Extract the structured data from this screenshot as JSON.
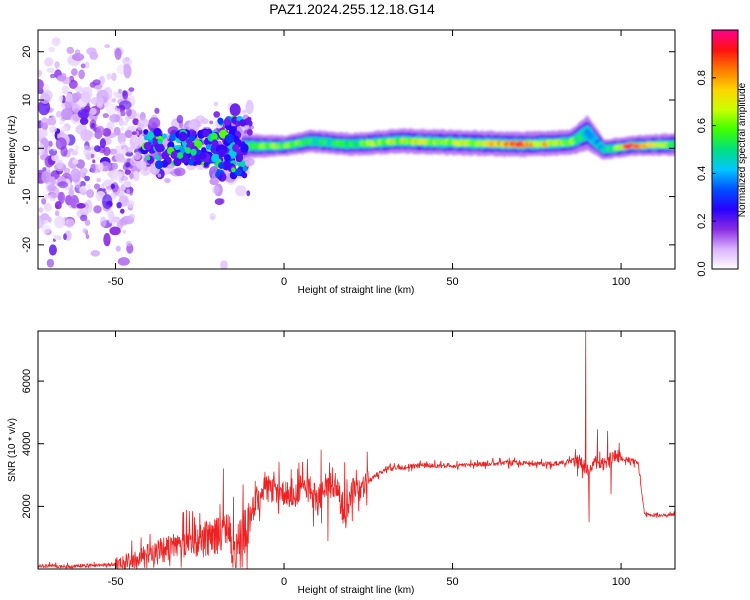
{
  "title": "PAZ1.2024.255.12.18.G14",
  "chart_data": [
    {
      "type": "heatmap",
      "xlabel": "Height of straight line (km)",
      "ylabel": "Frequency (Hz)",
      "xlim": [
        -73,
        116
      ],
      "ylim": [
        -25,
        24.5
      ],
      "xticks": [
        -50,
        0,
        50,
        100
      ],
      "yticks": [
        -20,
        -10,
        0,
        10,
        20
      ],
      "grid": false,
      "colorbar": {
        "label": "Normalized spectral amplitude",
        "range": [
          0,
          1
        ],
        "ticks": [
          "0.0",
          "0.2",
          "0.4",
          "0.6",
          "0.8"
        ],
        "colormap": [
          "#ffffff",
          "#d9b3ff",
          "#8a2be2",
          "#2800ff",
          "#0050ff",
          "#00c8ff",
          "#00e080",
          "#40ff00",
          "#c8ff00",
          "#ffd400",
          "#ff7a00",
          "#ff1010",
          "#ff0090"
        ]
      },
      "band_profile": [
        {
          "x": -12,
          "f": 0.5,
          "width": 2.0,
          "amp": 0.55
        },
        {
          "x": 0,
          "f": 0.5,
          "width": 1.6,
          "amp": 0.6
        },
        {
          "x": 8,
          "f": 1.5,
          "width": 1.8,
          "amp": 0.5
        },
        {
          "x": 20,
          "f": 0.8,
          "width": 1.8,
          "amp": 0.55
        },
        {
          "x": 35,
          "f": 1.5,
          "width": 2.0,
          "amp": 0.65
        },
        {
          "x": 50,
          "f": 1.2,
          "width": 2.0,
          "amp": 0.6
        },
        {
          "x": 70,
          "f": 0.8,
          "width": 2.0,
          "amp": 0.85
        },
        {
          "x": 85,
          "f": 1.2,
          "width": 2.0,
          "amp": 0.6
        },
        {
          "x": 90,
          "f": 3.2,
          "width": 2.8,
          "amp": 0.4
        },
        {
          "x": 95,
          "f": -0.3,
          "width": 1.6,
          "amp": 0.4
        },
        {
          "x": 103,
          "f": 0.5,
          "width": 1.6,
          "amp": 0.9
        },
        {
          "x": 116,
          "f": 0.8,
          "width": 1.8,
          "amp": 0.5
        }
      ]
    },
    {
      "type": "line",
      "xlabel": "Height of straight line (km)",
      "ylabel": "SNR (10 * v/v)",
      "xlim": [
        -73,
        116
      ],
      "ylim": [
        0,
        7600
      ],
      "xticks": [
        -50,
        0,
        50,
        100
      ],
      "yticks": [
        2000,
        4000,
        6000
      ],
      "grid": false,
      "series": [
        {
          "color": "#ee2222",
          "x": [
            -73,
            -65,
            -55,
            -50,
            -45,
            -40,
            -35,
            -30,
            -25,
            -20,
            -17,
            -15,
            -12,
            -10,
            -8,
            -5,
            -2,
            0,
            2,
            5,
            8,
            10,
            12,
            15,
            18,
            20,
            25,
            30,
            35,
            40,
            50,
            60,
            70,
            80,
            85,
            88,
            90,
            92,
            95,
            98,
            100,
            103,
            105,
            107,
            110,
            116
          ],
          "y": [
            100,
            80,
            120,
            150,
            250,
            450,
            650,
            850,
            900,
            1050,
            1200,
            700,
            1100,
            1700,
            2300,
            2600,
            2450,
            2500,
            2200,
            2650,
            2500,
            2150,
            2650,
            2700,
            1700,
            2400,
            2800,
            3200,
            3250,
            3300,
            3300,
            3350,
            3400,
            3350,
            3450,
            3400,
            3150,
            3400,
            3350,
            3650,
            3550,
            3450,
            3400,
            1750,
            1700,
            1750
          ]
        }
      ],
      "spikes": [
        {
          "x": -30,
          "y": 1800
        },
        {
          "x": -22,
          "y": 1500
        },
        {
          "x": -18,
          "y": 3200
        },
        {
          "x": -15,
          "y": 2300
        },
        {
          "x": -3,
          "y": 3100
        },
        {
          "x": 7,
          "y": 3200
        },
        {
          "x": 11,
          "y": 3800
        },
        {
          "x": 13,
          "y": 900
        },
        {
          "x": 18,
          "y": 3400
        },
        {
          "x": 89.5,
          "y": 7600
        },
        {
          "x": 90.5,
          "y": 1500
        },
        {
          "x": 93,
          "y": 4450
        },
        {
          "x": 96,
          "y": 4400
        },
        {
          "x": 97,
          "y": 2400
        }
      ]
    }
  ]
}
